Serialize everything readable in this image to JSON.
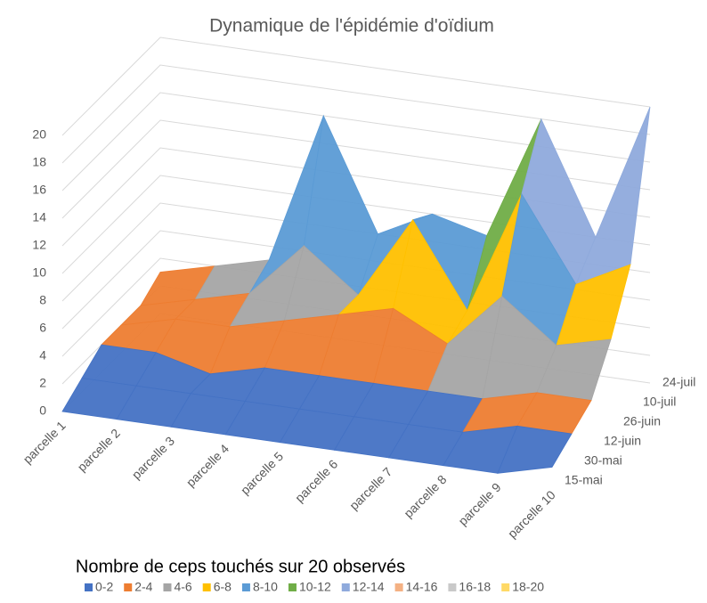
{
  "chart_data": {
    "type": "surface",
    "title": "Dynamique de l'épidémie d'oïdium",
    "legend_title": "Nombre de ceps touchés sur 20 observés",
    "categories": [
      "parcelle 1",
      "parcelle 2",
      "parcelle 3",
      "parcelle 4",
      "parcelle 5",
      "parcelle 6",
      "parcelle 7",
      "parcelle 8",
      "parcelle 9",
      "parcelle 10"
    ],
    "depth": [
      "15-mai",
      "30-mai",
      "12-juin",
      "26-juin",
      "10-juil",
      "24-juil"
    ],
    "values": [
      [
        0,
        0,
        0,
        0,
        0,
        0,
        0,
        0,
        0,
        1
      ],
      [
        1,
        1,
        1,
        1,
        1,
        1,
        1,
        1,
        2,
        2
      ],
      [
        2,
        2,
        1,
        2,
        2,
        2,
        2,
        2,
        3,
        3
      ],
      [
        2,
        3,
        3,
        4,
        5,
        6,
        4,
        8,
        5,
        6
      ],
      [
        2,
        3,
        4,
        8,
        5,
        11,
        5,
        14,
        8,
        10
      ],
      [
        3,
        4,
        5,
        16,
        8,
        10,
        9,
        18,
        10,
        20
      ]
    ],
    "zlim": [
      0,
      20
    ],
    "zticks": [
      0,
      2,
      4,
      6,
      8,
      10,
      12,
      14,
      16,
      18,
      20
    ],
    "bands": [
      {
        "name": "0-2",
        "color": "#4472c4"
      },
      {
        "name": "2-4",
        "color": "#ed7d31"
      },
      {
        "name": "4-6",
        "color": "#a5a5a5"
      },
      {
        "name": "6-8",
        "color": "#ffc000"
      },
      {
        "name": "8-10",
        "color": "#5b9bd5"
      },
      {
        "name": "10-12",
        "color": "#70ad47"
      },
      {
        "name": "12-14",
        "color": "#8faadc"
      },
      {
        "name": "14-16",
        "color": "#f4b183"
      },
      {
        "name": "16-18",
        "color": "#c9c9c9"
      },
      {
        "name": "18-20",
        "color": "#ffd966"
      }
    ],
    "grid": true
  }
}
